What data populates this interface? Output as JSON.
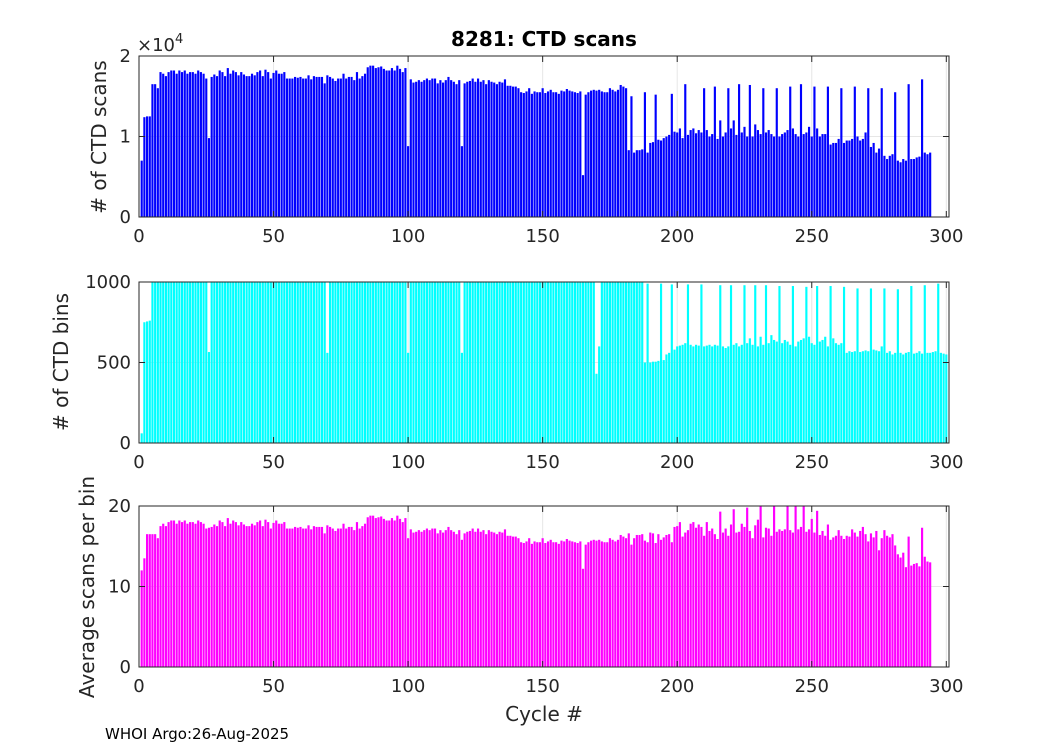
{
  "figure_title": "8281: CTD scans",
  "footer": "WHOI Argo:26-Aug-2025",
  "chart_data": [
    {
      "type": "bar",
      "name": "scans",
      "ylabel": "# of CTD scans",
      "xlabel": "",
      "exponent_label": "×10",
      "exponent_power": "4",
      "color": "#0000ff",
      "xlim": [
        0,
        301
      ],
      "ylim": [
        0,
        2
      ],
      "xticks": [
        0,
        50,
        100,
        150,
        200,
        250,
        300
      ],
      "yticks": [
        0,
        1,
        2
      ],
      "x_start": 1,
      "values": [
        0.7,
        1.24,
        1.25,
        1.25,
        1.65,
        1.65,
        1.6,
        1.8,
        1.78,
        1.75,
        1.8,
        1.82,
        1.82,
        1.78,
        1.82,
        1.8,
        1.82,
        1.78,
        1.8,
        1.8,
        1.78,
        1.82,
        1.8,
        1.78,
        1.72,
        0.98,
        1.74,
        1.77,
        1.75,
        1.82,
        1.8,
        1.75,
        1.85,
        1.78,
        1.82,
        1.8,
        1.76,
        1.8,
        1.77,
        1.75,
        1.75,
        1.78,
        1.76,
        1.8,
        1.82,
        1.75,
        1.83,
        1.8,
        1.72,
        1.79,
        1.82,
        1.78,
        1.78,
        1.8,
        1.72,
        1.72,
        1.72,
        1.74,
        1.73,
        1.74,
        1.72,
        1.72,
        1.76,
        1.71,
        1.75,
        1.74,
        1.74,
        1.74,
        1.66,
        1.76,
        1.74,
        1.72,
        1.69,
        1.72,
        1.72,
        1.78,
        1.72,
        1.74,
        1.74,
        1.7,
        1.8,
        1.72,
        1.75,
        1.78,
        1.86,
        1.88,
        1.88,
        1.85,
        1.86,
        1.87,
        1.84,
        1.82,
        1.82,
        1.85,
        1.82,
        1.88,
        1.84,
        1.8,
        1.85,
        0.88,
        1.71,
        1.67,
        1.68,
        1.7,
        1.68,
        1.7,
        1.72,
        1.7,
        1.72,
        1.72,
        1.66,
        1.7,
        1.67,
        1.7,
        1.74,
        1.7,
        1.68,
        1.65,
        1.7,
        0.88,
        1.66,
        1.68,
        1.69,
        1.72,
        1.68,
        1.72,
        1.68,
        1.7,
        1.65,
        1.7,
        1.68,
        1.67,
        1.65,
        1.68,
        1.67,
        1.71,
        1.63,
        1.63,
        1.62,
        1.62,
        1.6,
        1.55,
        1.54,
        1.56,
        1.6,
        1.53,
        1.56,
        1.55,
        1.55,
        1.6,
        1.54,
        1.56,
        1.58,
        1.55,
        1.55,
        1.53,
        1.57,
        1.56,
        1.59,
        1.57,
        1.56,
        1.55,
        1.54,
        1.56,
        0.52,
        1.52,
        1.55,
        1.57,
        1.58,
        1.57,
        1.58,
        1.56,
        1.55,
        1.55,
        1.6,
        1.58,
        1.56,
        1.58,
        1.64,
        1.62,
        1.6,
        0.83,
        1.5,
        0.8,
        0.83,
        0.83,
        0.84,
        1.55,
        0.8,
        0.92,
        0.93,
        1.52,
        0.96,
        0.95,
        0.98,
        1.0,
        1.02,
        1.53,
        1.06,
        1.05,
        1.1,
        0.98,
        1.65,
        1.02,
        1.08,
        1.1,
        1.04,
        1.08,
        1.05,
        1.6,
        1.08,
        1.0,
        1.03,
        1.62,
        0.97,
        1.2,
        1.0,
        1.05,
        1.6,
        1.1,
        1.2,
        1.02,
        1.65,
        1.05,
        1.12,
        1.0,
        1.64,
        1.0,
        1.15,
        1.08,
        1.03,
        1.6,
        1.05,
        1.08,
        1.03,
        1.0,
        1.6,
        1.0,
        1.03,
        1.05,
        1.08,
        1.62,
        1.1,
        1.03,
        1.0,
        1.65,
        1.03,
        1.05,
        1.12,
        1.0,
        1.62,
        1.1,
        1.0,
        1.03,
        1.03,
        1.62,
        0.9,
        0.92,
        0.92,
        0.97,
        1.6,
        0.92,
        0.95,
        0.95,
        0.97,
        1.62,
        1.0,
        0.95,
        0.97,
        1.05,
        1.6,
        0.87,
        0.92,
        0.8,
        0.85,
        1.6,
        0.76,
        0.72,
        0.76,
        0.78,
        1.55,
        0.7,
        0.68,
        0.72,
        0.7,
        1.65,
        0.72,
        0.72,
        0.74,
        0.75,
        1.71,
        0.8,
        0.78,
        0.8
      ]
    },
    {
      "type": "bar",
      "name": "bins",
      "ylabel": "# of CTD bins",
      "xlabel": "",
      "color": "#00ffff",
      "xlim": [
        0,
        301
      ],
      "ylim": [
        0,
        1000
      ],
      "xticks": [
        0,
        50,
        100,
        150,
        200,
        250,
        300
      ],
      "yticks": [
        0,
        500,
        1000
      ],
      "x_start": 1,
      "values": [
        60,
        750,
        755,
        760,
        1000,
        1000,
        1000,
        1000,
        1000,
        1000,
        1000,
        1000,
        1000,
        1000,
        1000,
        1000,
        1000,
        1000,
        1000,
        1000,
        1000,
        1000,
        1000,
        1000,
        1000,
        565,
        1000,
        1000,
        1000,
        1000,
        1000,
        1000,
        1000,
        1000,
        1000,
        1000,
        1000,
        1000,
        1000,
        1000,
        1000,
        1000,
        1000,
        1000,
        1000,
        1000,
        1000,
        1000,
        1000,
        1000,
        1000,
        1000,
        1000,
        1000,
        1000,
        1000,
        1000,
        1000,
        1000,
        1000,
        1000,
        1000,
        1000,
        1000,
        1000,
        1000,
        1000,
        1000,
        1000,
        560,
        1000,
        1000,
        1000,
        1000,
        1000,
        1000,
        1000,
        1000,
        1000,
        1000,
        1000,
        1000,
        1000,
        1000,
        1000,
        1000,
        1000,
        1000,
        1000,
        1000,
        1000,
        1000,
        1000,
        1000,
        1000,
        1000,
        1000,
        1000,
        1000,
        560,
        1000,
        1000,
        1000,
        1000,
        1000,
        1000,
        1000,
        1000,
        1000,
        1000,
        1000,
        1000,
        1000,
        1000,
        1000,
        1000,
        1000,
        1000,
        1000,
        560,
        1000,
        1000,
        1000,
        1000,
        1000,
        1000,
        1000,
        1000,
        1000,
        1000,
        1000,
        1000,
        1000,
        1000,
        1000,
        1000,
        1000,
        1000,
        1000,
        1000,
        1000,
        1000,
        1000,
        1000,
        1000,
        1000,
        1000,
        1000,
        1000,
        1000,
        1000,
        1000,
        1000,
        1000,
        1000,
        1000,
        1000,
        1000,
        1000,
        1000,
        1000,
        1000,
        1000,
        1000,
        1000,
        1000,
        1000,
        1000,
        1000,
        430,
        600,
        1000,
        1000,
        1000,
        1000,
        1000,
        1000,
        1000,
        1000,
        1000,
        1000,
        1000,
        1000,
        1000,
        1000,
        1000,
        1000,
        500,
        990,
        500,
        505,
        505,
        510,
        990,
        515,
        550,
        560,
        985,
        580,
        600,
        605,
        610,
        620,
        985,
        610,
        600,
        610,
        605,
        985,
        600,
        605,
        610,
        600,
        610,
        605,
        980,
        600,
        590,
        600,
        980,
        610,
        620,
        600,
        610,
        980,
        620,
        650,
        610,
        980,
        600,
        660,
        610,
        980,
        620,
        670,
        640,
        630,
        975,
        620,
        640,
        630,
        610,
        975,
        600,
        630,
        640,
        650,
        970,
        660,
        620,
        610,
        975,
        630,
        640,
        660,
        600,
        975,
        650,
        620,
        610,
        620,
        970,
        560,
        570,
        565,
        570,
        960,
        565,
        570,
        575,
        570,
        960,
        580,
        575,
        570,
        600,
        960,
        560,
        570,
        550,
        560,
        955,
        560,
        550,
        560,
        565,
        975,
        555,
        560,
        570,
        555,
        980,
        560,
        560,
        565,
        570,
        990,
        560,
        555,
        550
      ]
    },
    {
      "type": "bar",
      "name": "avg",
      "ylabel": "Average scans per bin",
      "xlabel": "Cycle #",
      "color": "#ff00ff",
      "xlim": [
        0,
        301
      ],
      "ylim": [
        0,
        20
      ],
      "xticks": [
        0,
        50,
        100,
        150,
        200,
        250,
        300
      ],
      "yticks": [
        0,
        10,
        20
      ],
      "x_start": 1,
      "values": [
        12.0,
        13.5,
        16.5,
        16.5,
        16.5,
        16.5,
        16.0,
        17.5,
        17.8,
        17.5,
        18.0,
        18.2,
        18.2,
        17.8,
        18.2,
        18.0,
        18.2,
        17.8,
        18.0,
        18.0,
        17.8,
        18.2,
        18.0,
        17.8,
        17.2,
        17.3,
        17.4,
        17.7,
        17.5,
        18.2,
        18.0,
        17.5,
        18.5,
        17.8,
        18.2,
        18.0,
        17.6,
        18.0,
        17.7,
        17.5,
        17.5,
        17.8,
        17.6,
        18.0,
        18.2,
        17.5,
        18.3,
        18.0,
        17.2,
        17.9,
        18.2,
        17.8,
        17.8,
        18.0,
        17.2,
        17.2,
        17.2,
        17.4,
        17.3,
        17.4,
        17.2,
        17.2,
        17.6,
        17.1,
        17.5,
        17.4,
        17.4,
        17.4,
        16.6,
        17.6,
        17.4,
        17.2,
        16.9,
        17.2,
        17.2,
        17.8,
        17.2,
        17.4,
        17.4,
        17.0,
        18.0,
        17.2,
        17.5,
        17.8,
        18.6,
        18.8,
        18.8,
        18.5,
        18.6,
        18.7,
        18.4,
        18.2,
        18.2,
        18.5,
        18.2,
        18.8,
        18.4,
        18.0,
        18.5,
        16.0,
        17.1,
        16.7,
        16.8,
        17.0,
        16.8,
        17.0,
        17.2,
        17.0,
        17.2,
        17.2,
        16.6,
        17.0,
        16.7,
        17.0,
        17.4,
        17.0,
        16.8,
        16.5,
        17.0,
        15.8,
        16.6,
        16.8,
        16.9,
        17.2,
        16.8,
        17.2,
        16.8,
        17.0,
        16.5,
        17.0,
        16.8,
        16.7,
        16.5,
        16.8,
        16.7,
        17.1,
        16.3,
        16.3,
        16.2,
        16.2,
        16.0,
        15.5,
        15.4,
        15.6,
        16.0,
        15.3,
        15.6,
        15.5,
        15.5,
        16.0,
        15.4,
        15.6,
        15.8,
        15.5,
        15.5,
        15.3,
        15.7,
        15.6,
        15.9,
        15.7,
        15.6,
        15.5,
        15.4,
        15.6,
        12.2,
        15.2,
        15.5,
        15.7,
        15.8,
        15.7,
        15.8,
        15.6,
        15.5,
        15.5,
        16.0,
        15.8,
        15.6,
        15.8,
        16.4,
        16.2,
        16.0,
        16.6,
        15.2,
        16.0,
        16.4,
        16.4,
        16.5,
        15.7,
        15.5,
        16.7,
        16.6,
        15.4,
        16.5,
        15.8,
        16.1,
        16.4,
        16.5,
        15.5,
        17.4,
        17.5,
        18.0,
        16.2,
        16.7,
        17.0,
        17.8,
        18.0,
        17.3,
        17.7,
        17.4,
        16.3,
        18.0,
        16.9,
        17.2,
        16.5,
        15.9,
        19.3,
        16.7,
        17.2,
        16.3,
        17.7,
        19.6,
        16.7,
        16.8,
        17.8,
        17.4,
        19.8,
        16.9,
        16.0,
        17.6,
        18.3,
        20.2,
        16.1,
        17.3,
        17.2,
        16.3,
        20.3,
        16.8,
        17.1,
        16.9,
        17.1,
        20.4,
        17.0,
        16.7,
        20.2,
        17.1,
        17.4,
        20.0,
        16.8,
        17.1,
        18.4,
        16.7,
        19.4,
        16.4,
        16.9,
        16.3,
        17.7,
        15.8,
        16.1,
        16.3,
        17.0,
        16.3,
        15.9,
        16.3,
        16.2,
        17.1,
        16.7,
        16.2,
        16.9,
        17.4,
        16.5,
        15.6,
        16.6,
        16.1,
        16.9,
        14.5,
        16.0,
        17.0,
        16.3,
        16.1,
        16.5,
        15.1,
        14.0,
        13.6,
        14.2,
        12.4,
        16.2,
        12.6,
        12.8,
        12.9,
        12.5,
        17.3,
        13.7,
        13.1,
        13.0
      ]
    }
  ]
}
